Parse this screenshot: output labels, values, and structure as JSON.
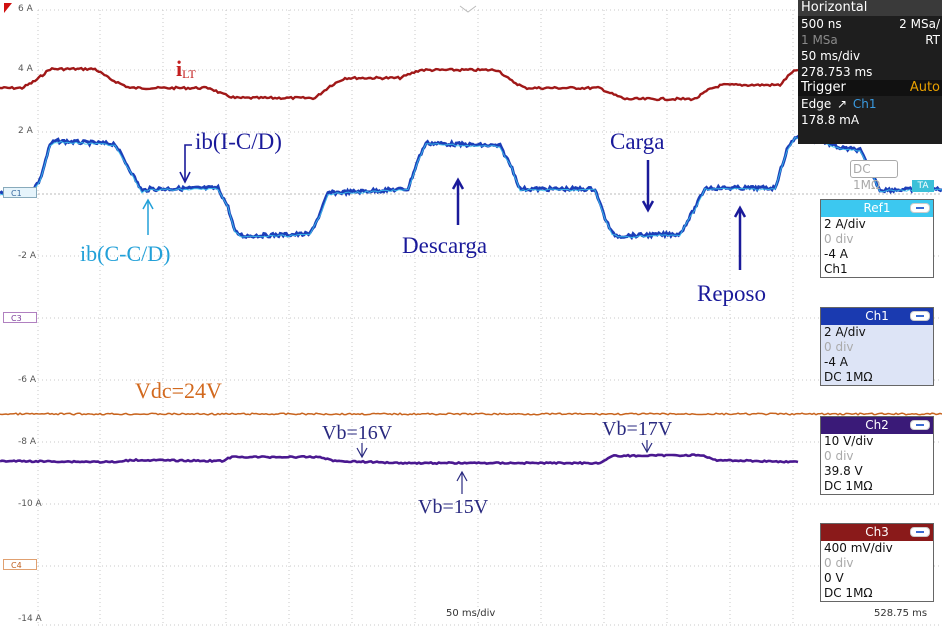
{
  "y_axis_labels": [
    "6 A",
    "4 A",
    "2 A",
    "-2 A",
    "-6 A",
    "-8 A",
    "-10 A",
    "-14 A"
  ],
  "channel_markers": [
    "C1",
    "C3",
    "C4"
  ],
  "annotations": {
    "ilt_main": "i",
    "ilt_sub": "LT",
    "ib_icd": "ib(I-C/D)",
    "ib_ccd": "ib(C-C/D)",
    "descarga": "Descarga",
    "carga": "Carga",
    "reposo": "Reposo",
    "vdc": "Vdc=24V",
    "vb16": "Vb=16V",
    "vb17": "Vb=17V",
    "vb15": "Vb=15V"
  },
  "horizontal_panel": {
    "title": "Horizontal",
    "resolution": "500 ns",
    "sample_rate": "2 MSa/",
    "points": "1 MSa",
    "mode": "RT",
    "timebase": "50 ms/div",
    "position": "278.753 ms",
    "trigger_title": "Trigger",
    "trigger_mode": "Auto",
    "trigger_type": "Edge",
    "trigger_source": "Ch1",
    "trigger_level": "178.8 mA"
  },
  "trigger_coupling_box": "DC 1MΩ",
  "trigger_marker": "TA",
  "channels": [
    {
      "title": "Ref1",
      "scale": "2 A/div",
      "offset": "0 div",
      "position": "-4 A",
      "extra": "Ch1",
      "color": "#3cc8f0"
    },
    {
      "title": "Ch1",
      "scale": "2 A/div",
      "offset": "0 div",
      "position": "-4 A",
      "extra": "DC 1MΩ",
      "color": "#1a3ab0"
    },
    {
      "title": "Ch2",
      "scale": "10 V/div",
      "offset": "0 div",
      "position": "39.8 V",
      "extra": "DC 1MΩ",
      "color": "#3a1a78"
    },
    {
      "title": "Ch3",
      "scale": "400 mV/div",
      "offset": "0 div",
      "position": "0 V",
      "extra": "DC 1MΩ",
      "color": "#8a1a1a"
    }
  ],
  "bottom_timebase": "50 ms/div",
  "bottom_time": "528.75 ms",
  "colors": {
    "ilt_trace": "#a01818",
    "ib_trace": "#1c3fb8",
    "ib_ref_trace": "#3cc8f0",
    "vdc_trace": "#c8641e",
    "vb_trace": "#4a1890"
  }
}
